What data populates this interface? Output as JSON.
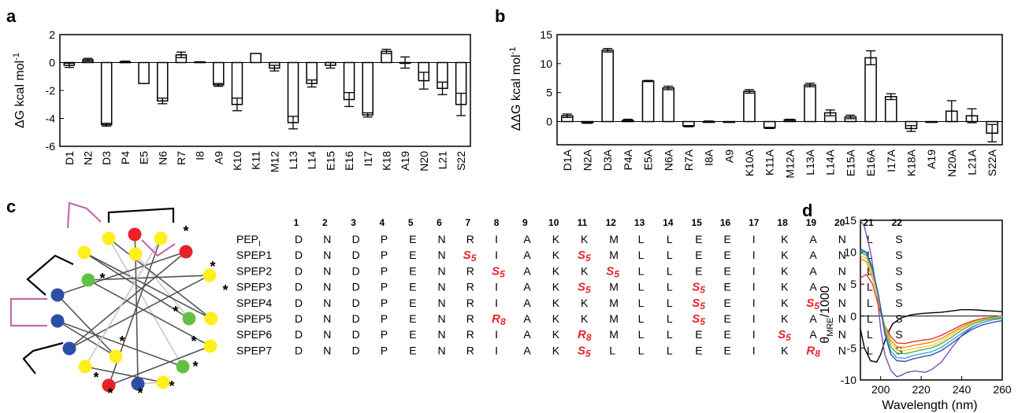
{
  "panels": {
    "a": "a",
    "b": "b",
    "c": "c",
    "d": "d"
  },
  "chart_data": [
    {
      "id": "a",
      "type": "bar",
      "ylabel": "ΔG kcal mol-1",
      "ylabel_main": "ΔG kcal mol",
      "ylabel_sup": "-1",
      "xlabel": "",
      "ylim": [
        -6,
        2
      ],
      "yticks": [
        2,
        0,
        -2,
        -4,
        -6
      ],
      "categories": [
        "D1",
        "N2",
        "D3",
        "P4",
        "E5",
        "N6",
        "R7",
        "I8",
        "A9",
        "K10",
        "K11",
        "M12",
        "L13",
        "L14",
        "E15",
        "E16",
        "I17",
        "K18",
        "A19",
        "N20",
        "L21",
        "S22"
      ],
      "values": [
        -0.2,
        0.2,
        -4.45,
        0.05,
        -1.5,
        -2.75,
        0.55,
        0.05,
        -1.6,
        -3.0,
        0.65,
        -0.4,
        -4.3,
        -1.5,
        -0.2,
        -2.65,
        -3.75,
        0.8,
        0.0,
        -1.3,
        -1.85,
        -3.0
      ],
      "errors": [
        0.15,
        0.1,
        0.1,
        0.05,
        0.0,
        0.2,
        0.2,
        0.0,
        0.1,
        0.45,
        0.0,
        0.2,
        0.45,
        0.25,
        0.2,
        0.5,
        0.15,
        0.15,
        0.4,
        0.6,
        0.45,
        0.8
      ],
      "grid": false
    },
    {
      "id": "b",
      "type": "bar",
      "ylabel": "ΔΔG kcal mol-1",
      "ylabel_main": "ΔΔG kcal mol",
      "ylabel_sup": "-1",
      "xlabel": "",
      "ylim": [
        -4,
        15
      ],
      "yticks": [
        15,
        10,
        5,
        0
      ],
      "categories": [
        "D1A",
        "N2A",
        "D3A",
        "P4A",
        "E5A",
        "N6A",
        "R7A",
        "I8A",
        "A9",
        "K10A",
        "K11A",
        "M12A",
        "L13A",
        "L14A",
        "E15A",
        "E16A",
        "I17A",
        "K18A",
        "A19",
        "N20A",
        "L21A",
        "S22A"
      ],
      "values": [
        1.0,
        -0.2,
        12.3,
        0.2,
        7.0,
        5.8,
        -0.8,
        0.0,
        0.0,
        5.2,
        -1.1,
        0.3,
        6.3,
        1.5,
        0.8,
        11.0,
        4.3,
        -1.2,
        0.0,
        1.8,
        1.0,
        -2.0
      ],
      "errors": [
        0.3,
        0.1,
        0.3,
        0.2,
        0.1,
        0.3,
        0.1,
        0.1,
        0.0,
        0.3,
        0.1,
        0.1,
        0.3,
        0.5,
        0.3,
        1.2,
        0.5,
        0.5,
        0.0,
        1.8,
        1.2,
        1.5
      ],
      "grid": false
    },
    {
      "id": "d",
      "type": "line",
      "xlabel": "Wavelength (nm)",
      "ylabel": "θMRE/1000",
      "ylabel_main": "θ",
      "ylabel_sub": "MRE",
      "ylabel_rest": "/1000",
      "xlim": [
        190,
        260
      ],
      "ylim": [
        -10,
        15
      ],
      "xticks": [
        200,
        220,
        240,
        260
      ],
      "yticks": [
        15,
        10,
        5,
        0,
        -5,
        -10
      ],
      "grid": false,
      "series": [
        {
          "color": "#000000",
          "x": [
            190,
            192,
            195,
            198,
            200,
            203,
            206,
            210,
            215,
            220,
            225,
            230,
            235,
            240,
            245,
            250,
            255,
            260
          ],
          "y": [
            -2,
            -5,
            -7,
            -7.2,
            -6,
            -3,
            -1.2,
            -0.3,
            0.2,
            0.4,
            0.5,
            0.6,
            0.8,
            1.0,
            1.0,
            0.9,
            0.8,
            0.7
          ]
        },
        {
          "color": "#7b4fb3",
          "x": [
            190,
            192,
            195,
            198,
            200,
            202,
            205,
            208,
            210,
            213,
            217,
            222,
            225,
            230,
            235,
            240,
            245,
            250,
            255,
            260
          ],
          "y": [
            15,
            14,
            10,
            4,
            -2,
            -6,
            -8.5,
            -9.5,
            -9.3,
            -8.8,
            -8.6,
            -8.8,
            -8.4,
            -7.2,
            -5,
            -3,
            -1.8,
            -1,
            -0.6,
            -0.3
          ]
        },
        {
          "color": "#e03a2a",
          "x": [
            190,
            193,
            196,
            199,
            202,
            205,
            208,
            212,
            216,
            220,
            225,
            230,
            235,
            240,
            245,
            250,
            255,
            260
          ],
          "y": [
            6,
            6.5,
            5,
            1.5,
            -1.5,
            -3.2,
            -4.2,
            -4.3,
            -4.0,
            -3.8,
            -3.6,
            -3.0,
            -2.2,
            -1.4,
            -0.8,
            -0.4,
            -0.2,
            0
          ]
        },
        {
          "color": "#f08a24",
          "x": [
            190,
            193,
            196,
            199,
            202,
            205,
            208,
            212,
            216,
            220,
            225,
            230,
            235,
            240,
            245,
            250,
            255,
            260
          ],
          "y": [
            9,
            8.5,
            6,
            2.5,
            -1.5,
            -3.8,
            -4.8,
            -4.9,
            -4.6,
            -4.4,
            -4.1,
            -3.5,
            -2.6,
            -1.7,
            -1.0,
            -0.6,
            -0.3,
            0
          ]
        },
        {
          "color": "#f2d22e",
          "x": [
            190,
            193,
            196,
            199,
            202,
            205,
            208,
            212,
            216,
            220,
            225,
            230,
            235,
            240,
            245,
            250,
            255,
            260
          ],
          "y": [
            9.5,
            9,
            6.5,
            2.5,
            -1.8,
            -4.2,
            -5.3,
            -5.4,
            -5.1,
            -4.9,
            -4.6,
            -3.9,
            -2.9,
            -1.9,
            -1.1,
            -0.6,
            -0.3,
            -0.1
          ]
        },
        {
          "color": "#4caf50",
          "x": [
            190,
            193,
            196,
            199,
            202,
            205,
            208,
            212,
            216,
            220,
            225,
            230,
            235,
            240,
            245,
            250,
            255,
            260
          ],
          "y": [
            10,
            9.5,
            7,
            3,
            -2,
            -4.8,
            -5.8,
            -5.9,
            -5.6,
            -5.3,
            -5.0,
            -4.3,
            -3.3,
            -2.2,
            -1.3,
            -0.7,
            -0.4,
            -0.2
          ]
        },
        {
          "color": "#4aa3df",
          "x": [
            190,
            193,
            196,
            199,
            202,
            205,
            208,
            212,
            216,
            220,
            225,
            230,
            235,
            240,
            245,
            250,
            255,
            260
          ],
          "y": [
            10.3,
            9.8,
            7.2,
            3,
            -2.5,
            -5.5,
            -6.5,
            -6.6,
            -6.2,
            -5.9,
            -5.6,
            -4.9,
            -3.8,
            -2.7,
            -1.7,
            -1.0,
            -0.6,
            -0.4
          ]
        },
        {
          "color": "#2a5aa6",
          "x": [
            190,
            193,
            196,
            199,
            202,
            205,
            208,
            212,
            216,
            220,
            225,
            230,
            235,
            240,
            245,
            250,
            255,
            260
          ],
          "y": [
            10.5,
            10,
            7.5,
            3.2,
            -2.8,
            -6.0,
            -7.0,
            -7.1,
            -6.7,
            -6.4,
            -6.1,
            -5.4,
            -4.3,
            -3.1,
            -2.1,
            -1.4,
            -1.0,
            -0.7
          ]
        }
      ]
    }
  ],
  "sequence_table": {
    "numbers": [
      "1",
      "2",
      "3",
      "4",
      "5",
      "6",
      "7",
      "8",
      "9",
      "10",
      "11",
      "12",
      "13",
      "14",
      "15",
      "16",
      "17",
      "18",
      "19",
      "20",
      "21",
      "22"
    ],
    "rows": [
      {
        "name": "PEP",
        "name_sub": "I",
        "residues": [
          "D",
          "N",
          "D",
          "P",
          "E",
          "N",
          "R",
          "I",
          "A",
          "K",
          "K",
          "M",
          "L",
          "L",
          "E",
          "E",
          "I",
          "K",
          "A",
          "N",
          "L",
          "S"
        ]
      },
      {
        "name": "SPEP1",
        "residues": [
          "D",
          "N",
          "D",
          "P",
          "E",
          "N",
          "S5",
          "I",
          "A",
          "K",
          "S5",
          "M",
          "L",
          "L",
          "E",
          "E",
          "I",
          "K",
          "A",
          "N",
          "L",
          "S"
        ]
      },
      {
        "name": "SPEP2",
        "residues": [
          "D",
          "N",
          "D",
          "P",
          "E",
          "N",
          "R",
          "S5",
          "A",
          "K",
          "K",
          "S5",
          "L",
          "L",
          "E",
          "E",
          "I",
          "K",
          "A",
          "N",
          "L",
          "S"
        ]
      },
      {
        "name": "SPEP3",
        "residues": [
          "D",
          "N",
          "D",
          "P",
          "E",
          "N",
          "R",
          "I",
          "A",
          "K",
          "S5",
          "M",
          "L",
          "L",
          "S5",
          "E",
          "I",
          "K",
          "A",
          "N",
          "L",
          "S"
        ]
      },
      {
        "name": "SPEP4",
        "residues": [
          "D",
          "N",
          "D",
          "P",
          "E",
          "N",
          "R",
          "I",
          "A",
          "K",
          "K",
          "M",
          "L",
          "L",
          "S5",
          "E",
          "I",
          "K",
          "S5",
          "N",
          "L",
          "S"
        ]
      },
      {
        "name": "SPEP5",
        "residues": [
          "D",
          "N",
          "D",
          "P",
          "E",
          "N",
          "R",
          "R8",
          "A",
          "K",
          "K",
          "M",
          "L",
          "L",
          "S5",
          "E",
          "I",
          "K",
          "A",
          "N",
          "L",
          "S"
        ]
      },
      {
        "name": "SPEP6",
        "residues": [
          "D",
          "N",
          "D",
          "P",
          "E",
          "N",
          "R",
          "I",
          "A",
          "K",
          "R8",
          "M",
          "L",
          "L",
          "E",
          "E",
          "I",
          "S5",
          "A",
          "N",
          "L",
          "S"
        ]
      },
      {
        "name": "SPEP7",
        "residues": [
          "D",
          "N",
          "D",
          "P",
          "E",
          "N",
          "R",
          "I",
          "A",
          "K",
          "S5",
          "L",
          "L",
          "L",
          "E",
          "E",
          "I",
          "K",
          "R8",
          "N",
          "L",
          "S"
        ]
      }
    ]
  },
  "helical_wheel": {
    "node_colors": {
      "red": "#e8222a",
      "yellow": "#ffef1a",
      "green": "#62c044",
      "blue": "#2e4ea6"
    },
    "marker": "*",
    "staple_colors": {
      "black": "#000000",
      "pink": "#c06cb0"
    }
  }
}
